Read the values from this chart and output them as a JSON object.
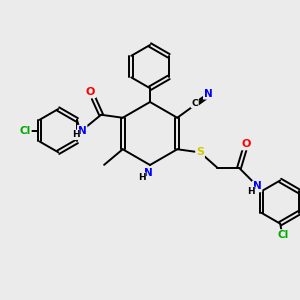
{
  "bg_color": "#ebebeb",
  "bond_color": "#000000",
  "atom_colors": {
    "N": "#0000ff",
    "O": "#ff0000",
    "S": "#cccc00",
    "Cl": "#00aa00",
    "C": "#000000",
    "H": "#000000",
    "NH": "#0000ff"
  },
  "figsize": [
    3.0,
    3.0
  ],
  "dpi": 100,
  "lw": 1.4
}
